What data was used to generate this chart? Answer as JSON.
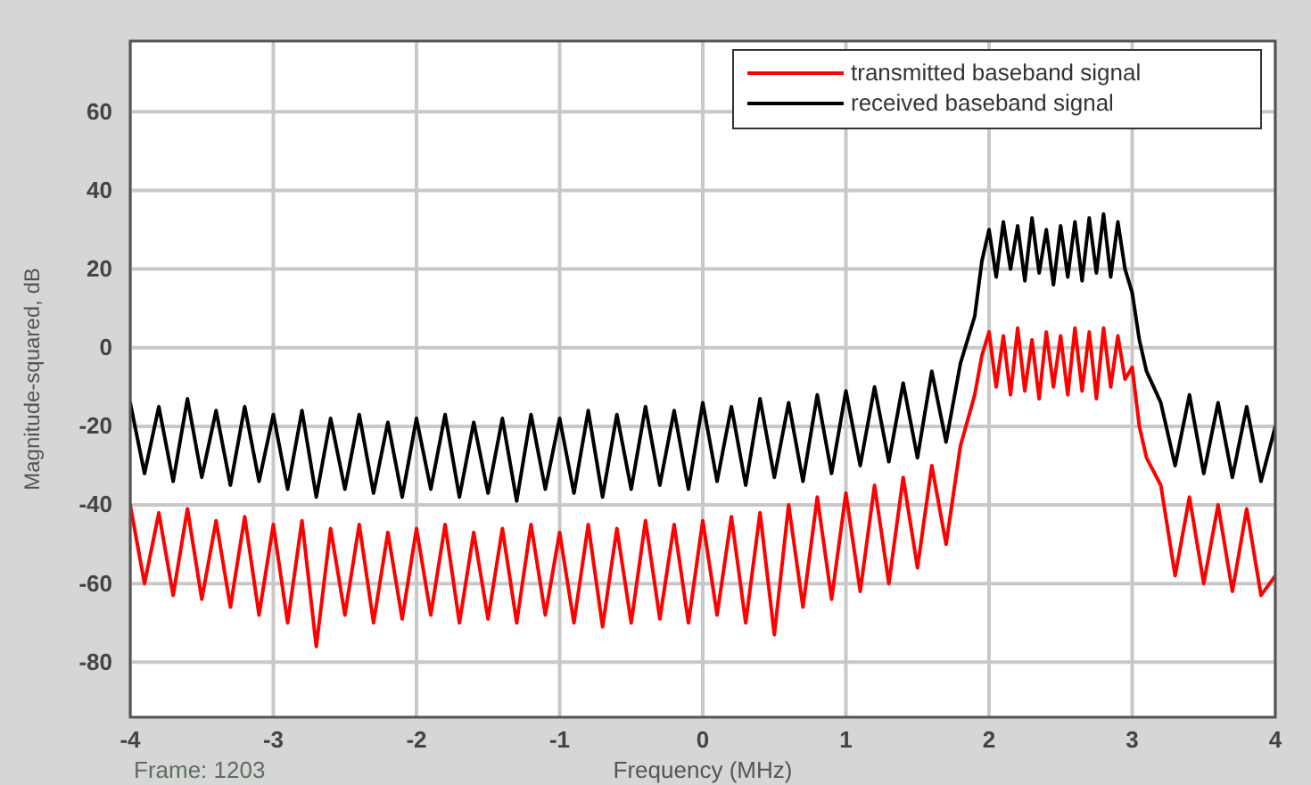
{
  "chart_data": {
    "type": "line",
    "xlabel": "Frequency (MHz)",
    "ylabel": "Magnitude-squared, dB",
    "annotations": [
      "Frame: 1203"
    ],
    "x": [
      -4.0,
      -3.9,
      -3.8,
      -3.7,
      -3.6,
      -3.5,
      -3.4,
      -3.3,
      -3.2,
      -3.1,
      -3.0,
      -2.9,
      -2.8,
      -2.7,
      -2.6,
      -2.5,
      -2.4,
      -2.3,
      -2.2,
      -2.1,
      -2.0,
      -1.9,
      -1.8,
      -1.7,
      -1.6,
      -1.5,
      -1.4,
      -1.3,
      -1.2,
      -1.1,
      -1.0,
      -0.9,
      -0.8,
      -0.7,
      -0.6,
      -0.5,
      -0.4,
      -0.3,
      -0.2,
      -0.1,
      0.0,
      0.1,
      0.2,
      0.3,
      0.4,
      0.5,
      0.6,
      0.7,
      0.8,
      0.9,
      1.0,
      1.1,
      1.2,
      1.3,
      1.4,
      1.5,
      1.6,
      1.7,
      1.8,
      1.9,
      1.95,
      2.0,
      2.05,
      2.1,
      2.15,
      2.2,
      2.25,
      2.3,
      2.35,
      2.4,
      2.45,
      2.5,
      2.55,
      2.6,
      2.65,
      2.7,
      2.75,
      2.8,
      2.85,
      2.9,
      2.95,
      3.0,
      3.05,
      3.1,
      3.2,
      3.3,
      3.4,
      3.5,
      3.6,
      3.7,
      3.8,
      3.9,
      4.0
    ],
    "series": [
      {
        "name": "transmitted baseband signal",
        "color": "#ff0000",
        "values": [
          -40,
          -60,
          -42,
          -63,
          -41,
          -64,
          -44,
          -66,
          -43,
          -68,
          -45,
          -70,
          -44,
          -76,
          -46,
          -68,
          -45,
          -70,
          -47,
          -69,
          -46,
          -68,
          -45,
          -70,
          -47,
          -69,
          -46,
          -70,
          -45,
          -68,
          -47,
          -70,
          -45,
          -71,
          -46,
          -70,
          -44,
          -69,
          -45,
          -70,
          -44,
          -68,
          -43,
          -70,
          -42,
          -73,
          -40,
          -66,
          -38,
          -64,
          -37,
          -62,
          -35,
          -60,
          -33,
          -56,
          -30,
          -50,
          -25,
          -12,
          -2,
          4,
          -10,
          3,
          -12,
          5,
          -11,
          2,
          -13,
          4,
          -10,
          3,
          -12,
          5,
          -11,
          4,
          -13,
          5,
          -10,
          3,
          -8,
          -5,
          -20,
          -28,
          -35,
          -58,
          -38,
          -60,
          -40,
          -62,
          -41,
          -63,
          -58
        ]
      },
      {
        "name": "received baseband signal",
        "color": "#000000",
        "values": [
          -14,
          -32,
          -15,
          -34,
          -13,
          -33,
          -16,
          -35,
          -15,
          -34,
          -17,
          -36,
          -16,
          -38,
          -18,
          -36,
          -17,
          -37,
          -19,
          -38,
          -18,
          -36,
          -17,
          -38,
          -19,
          -37,
          -18,
          -39,
          -17,
          -36,
          -18,
          -37,
          -16,
          -38,
          -17,
          -36,
          -15,
          -35,
          -16,
          -36,
          -14,
          -34,
          -15,
          -35,
          -13,
          -33,
          -14,
          -34,
          -12,
          -32,
          -11,
          -30,
          -10,
          -29,
          -9,
          -28,
          -6,
          -24,
          -4,
          8,
          22,
          30,
          18,
          32,
          20,
          31,
          17,
          33,
          19,
          30,
          16,
          31,
          18,
          32,
          17,
          33,
          19,
          34,
          18,
          32,
          20,
          14,
          2,
          -6,
          -14,
          -30,
          -12,
          -32,
          -14,
          -33,
          -15,
          -34,
          -20
        ]
      }
    ],
    "xlim": [
      -4,
      4
    ],
    "xticks": [
      -4,
      -3,
      -2,
      -1,
      0,
      1,
      2,
      3,
      4
    ],
    "ylim": [
      -94,
      78
    ],
    "yticks": [
      -80,
      -60,
      -40,
      -20,
      0,
      20,
      40,
      60
    ],
    "grid": true,
    "legend": "top right",
    "line_style": "solid"
  }
}
